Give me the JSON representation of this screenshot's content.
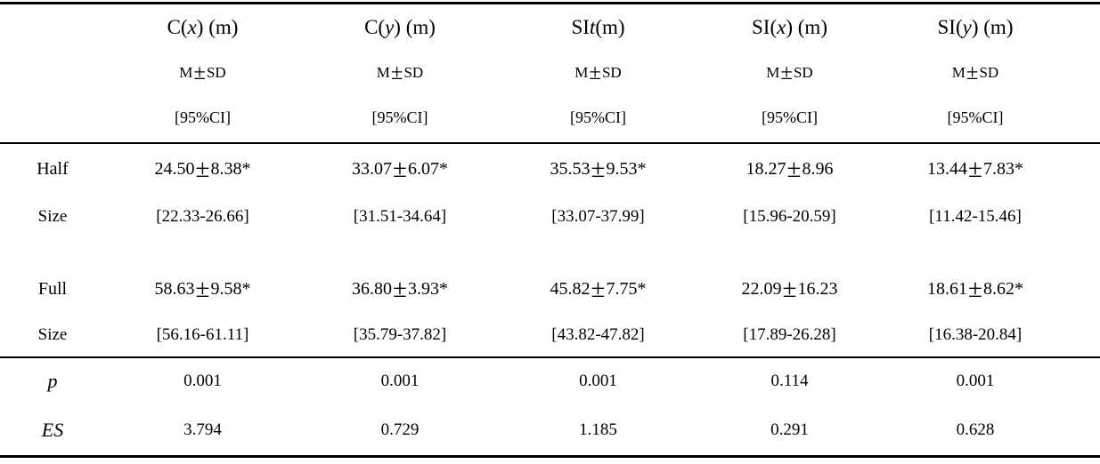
{
  "pm": "±",
  "columns": [
    {
      "pre": "C(",
      "it": "x",
      "post": ") (m)"
    },
    {
      "pre": "C(",
      "it": "y",
      "post": ") (m)"
    },
    {
      "pre": "SI",
      "it": "t",
      "post": " (m)"
    },
    {
      "pre": "SI(",
      "it": "x",
      "post": ") (m)"
    },
    {
      "pre": "SI(",
      "it": "y",
      "post": ") (m)"
    }
  ],
  "subheader": {
    "m": "M",
    "sd": "SD",
    "ci": "[95%CI]"
  },
  "rows": {
    "half": {
      "label1": "Half",
      "label2": "Size",
      "cells": [
        {
          "mean": "24.50",
          "sd": "8.38*",
          "ci": "[22.33-26.66]"
        },
        {
          "mean": "33.07",
          "sd": "6.07*",
          "ci": "[31.51-34.64]"
        },
        {
          "mean": "35.53",
          "sd": "9.53*",
          "ci": "[33.07-37.99]"
        },
        {
          "mean": "18.27",
          "sd": "8.96",
          "ci": "[15.96-20.59]"
        },
        {
          "mean": "13.44",
          "sd": "7.83*",
          "ci": "[11.42-15.46]"
        }
      ]
    },
    "full": {
      "label1": "Full",
      "label2": "Size",
      "cells": [
        {
          "mean": "58.63",
          "sd": "9.58*",
          "ci": "[56.16-61.11]"
        },
        {
          "mean": "36.80",
          "sd": "3.93*",
          "ci": "[35.79-37.82]"
        },
        {
          "mean": "45.82",
          "sd": "7.75*",
          "ci": "[43.82-47.82]"
        },
        {
          "mean": "22.09",
          "sd": "16.23",
          "ci": "[17.89-26.28]"
        },
        {
          "mean": "18.61",
          "sd": "8.62*",
          "ci": "[16.38-20.84]"
        }
      ]
    },
    "p": {
      "label": "p",
      "values": [
        "0.001",
        "0.001",
        "0.001",
        "0.114",
        "0.001"
      ]
    },
    "es": {
      "label": "ES",
      "values": [
        "3.794",
        "0.729",
        "1.185",
        "0.291",
        "0.628"
      ]
    }
  }
}
